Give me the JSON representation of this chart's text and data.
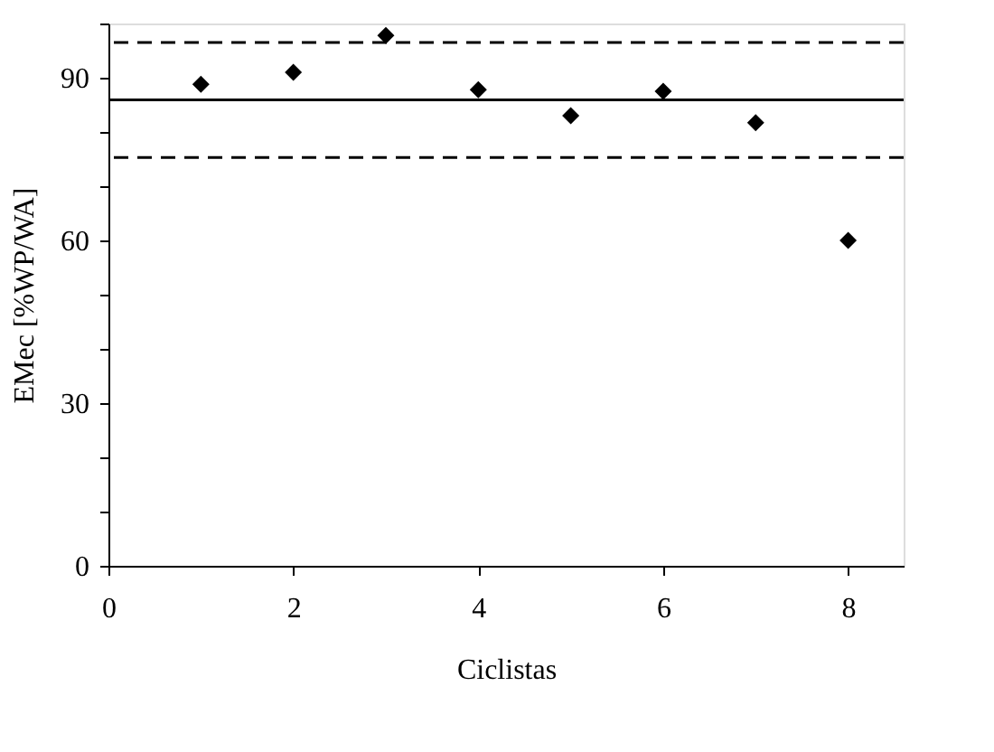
{
  "chart_data": {
    "type": "scatter",
    "xlabel": "Ciclistas",
    "ylabel": "EMec [%WP/WA]",
    "x": [
      1,
      2,
      3,
      4,
      5,
      6,
      7,
      8
    ],
    "values": [
      88.8,
      91,
      97.8,
      87.8,
      83,
      87.5,
      81.7,
      60
    ],
    "color": "#000000",
    "marker": "diamond",
    "xlim": [
      0,
      8.6
    ],
    "xticks": [
      0,
      2,
      4,
      6,
      8
    ],
    "ylim": [
      0,
      100
    ],
    "yticks": [
      0,
      {
        "value": 10,
        "label": null
      },
      {
        "value": 20,
        "label": null
      },
      30,
      {
        "value": 40,
        "label": null
      },
      {
        "value": 50,
        "label": null
      },
      60,
      {
        "value": 70,
        "label": null
      },
      {
        "value": 80,
        "label": null
      },
      90,
      {
        "value": 100,
        "label": null
      }
    ],
    "ref_lines": [
      {
        "axis": "y",
        "value": 85.9,
        "line_style": "solid",
        "color": "#000000"
      },
      {
        "axis": "y",
        "value": 96.5,
        "line_style": "dashed",
        "color": "#000000"
      },
      {
        "axis": "y",
        "value": 75.3,
        "line_style": "dashed",
        "color": "#000000"
      }
    ],
    "grid": false
  }
}
